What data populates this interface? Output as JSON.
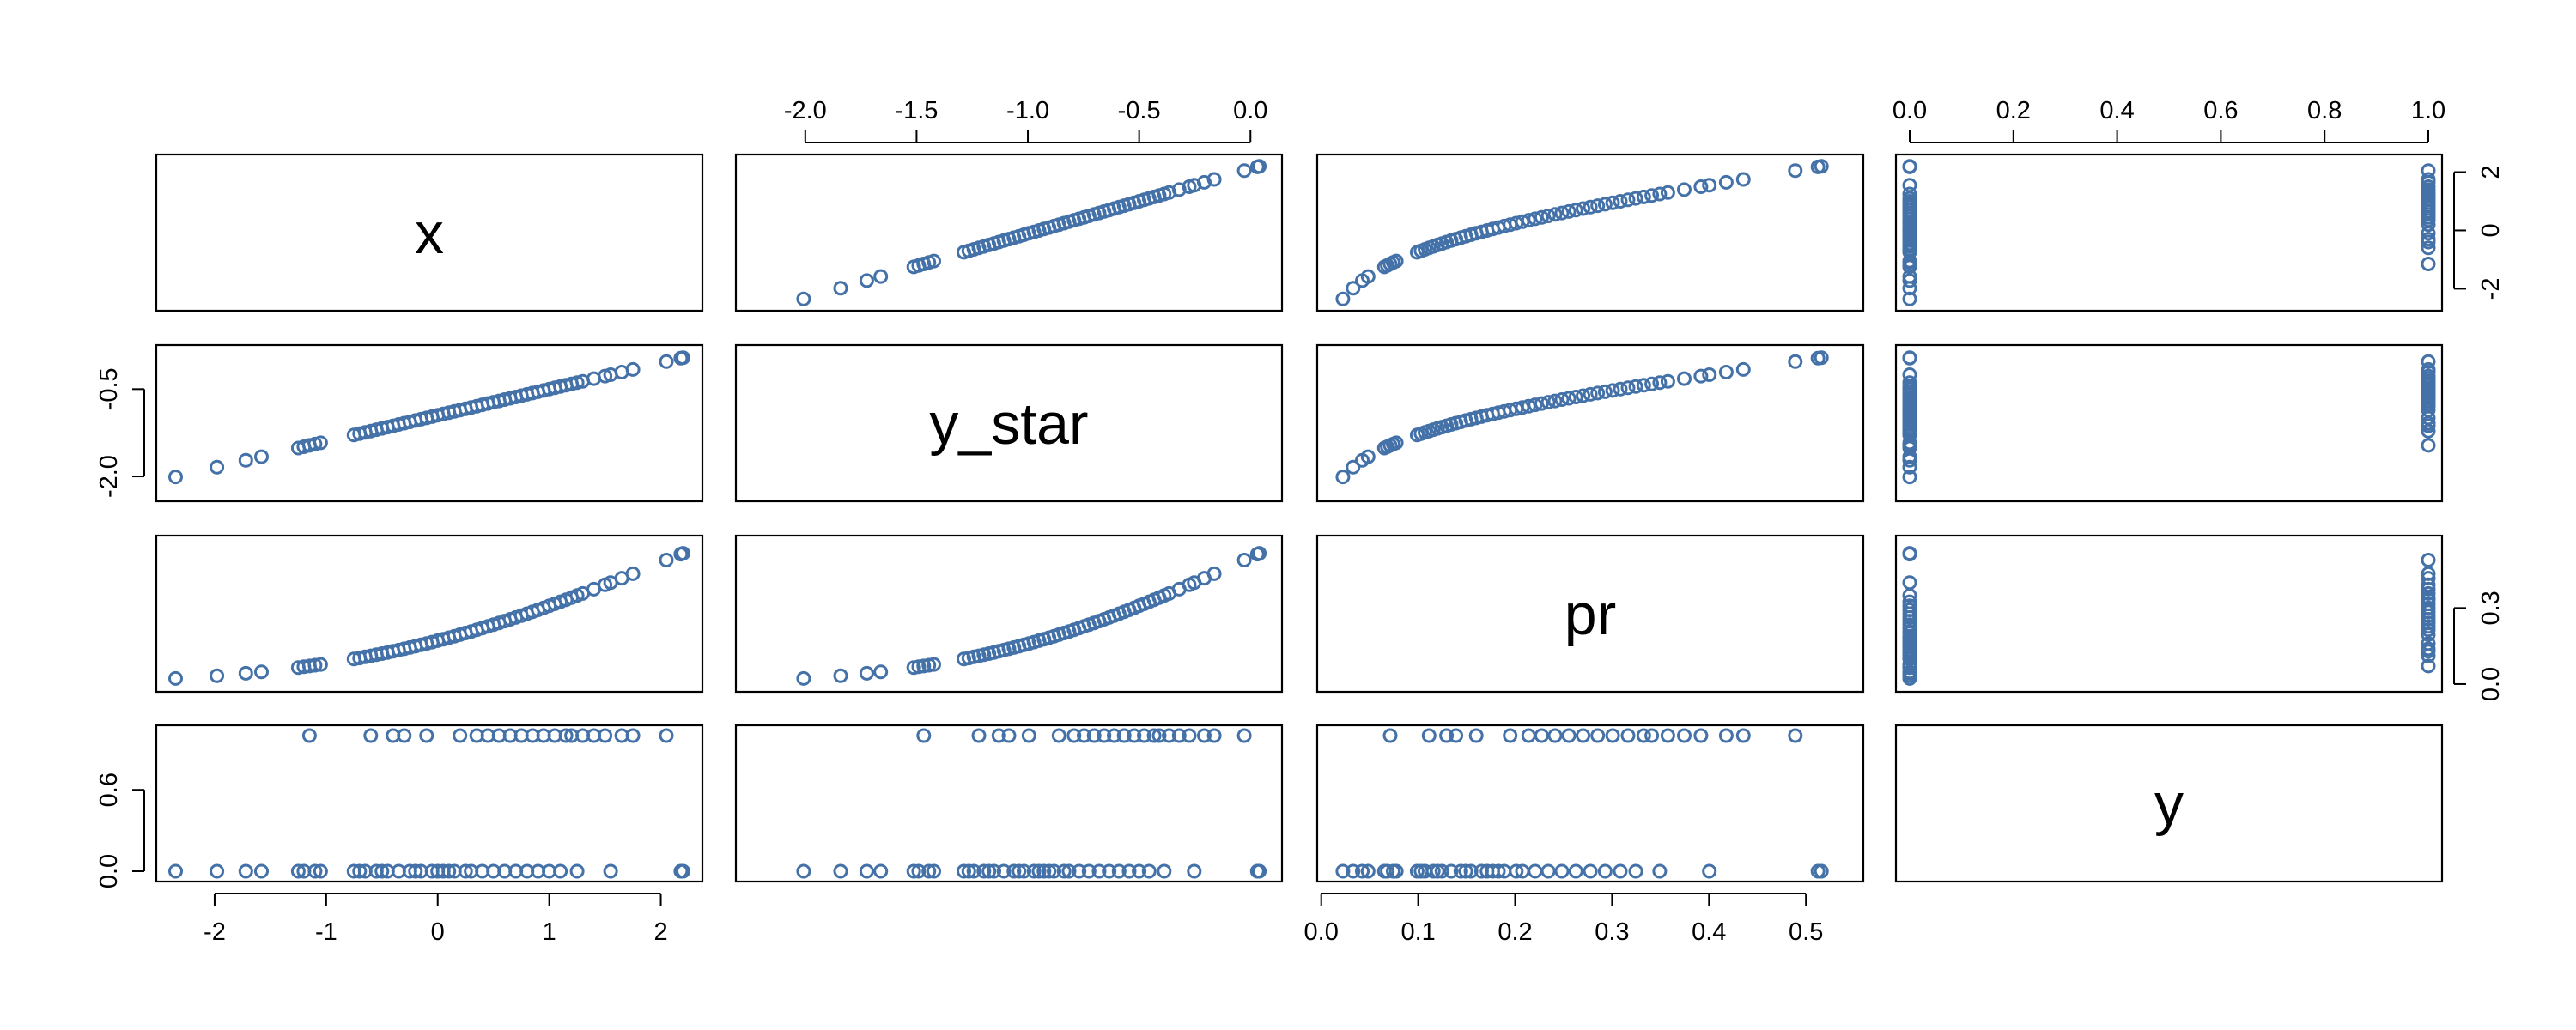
{
  "chart_data": {
    "type": "scatter",
    "variables": [
      "x",
      "y_star",
      "pr",
      "y"
    ],
    "axis_ranges": {
      "x": [
        -2.4,
        2.25
      ],
      "y_star": [
        -2.25,
        0.08
      ],
      "pr": [
        0.01,
        0.545
      ],
      "y": [
        0,
        1
      ]
    },
    "tick_labels": {
      "x": [
        "-2",
        "-1",
        "0",
        "1",
        "2"
      ],
      "y_star": [
        "-2.0",
        "-1.5",
        "-1.0",
        "-0.5",
        "0.0"
      ],
      "y_star_left": [
        "-2.0",
        "-0.5"
      ],
      "pr_bottom": [
        "0.0",
        "0.1",
        "0.2",
        "0.3",
        "0.4",
        "0.5"
      ],
      "pr_right": [
        "0.0",
        "0.3"
      ],
      "y_top": [
        "0.0",
        "0.2",
        "0.4",
        "0.6",
        "0.8",
        "1.0"
      ],
      "y_left": [
        "0.0",
        "0.6"
      ],
      "x_right": [
        "-2",
        "0",
        "2"
      ]
    },
    "observations": {
      "x": [
        -2.35,
        -1.98,
        -1.72,
        -1.58,
        -1.25,
        -1.2,
        -1.15,
        -1.1,
        -1.05,
        -0.75,
        -0.7,
        -0.65,
        -0.6,
        -0.55,
        -0.5,
        -0.45,
        -0.4,
        -0.35,
        -0.3,
        -0.25,
        -0.2,
        -0.15,
        -0.1,
        -0.05,
        0.0,
        0.05,
        0.1,
        0.15,
        0.2,
        0.25,
        0.3,
        0.35,
        0.4,
        0.45,
        0.5,
        0.55,
        0.6,
        0.65,
        0.7,
        0.75,
        0.8,
        0.85,
        0.9,
        0.95,
        1.0,
        1.05,
        1.1,
        1.15,
        1.2,
        1.25,
        1.3,
        1.4,
        1.5,
        1.55,
        1.65,
        1.75,
        2.05,
        2.18,
        2.2
      ],
      "y": [
        0,
        0,
        0,
        0,
        0,
        0,
        1,
        0,
        0,
        0,
        0,
        0,
        1,
        0,
        0,
        0,
        1,
        0,
        1,
        0,
        0,
        0,
        1,
        0,
        0,
        0,
        0,
        0,
        1,
        0,
        0,
        1,
        0,
        1,
        0,
        1,
        0,
        1,
        0,
        1,
        0,
        1,
        0,
        1,
        0,
        1,
        0,
        1,
        1,
        0,
        1,
        1,
        1,
        0,
        1,
        1,
        1,
        0,
        0
      ]
    },
    "model": {
      "y_star_intercept": -0.95,
      "y_star_slope": 0.45
    },
    "grid": false,
    "legend": "none",
    "colors": {
      "points": "#4472a8",
      "frame": "#000000"
    }
  }
}
